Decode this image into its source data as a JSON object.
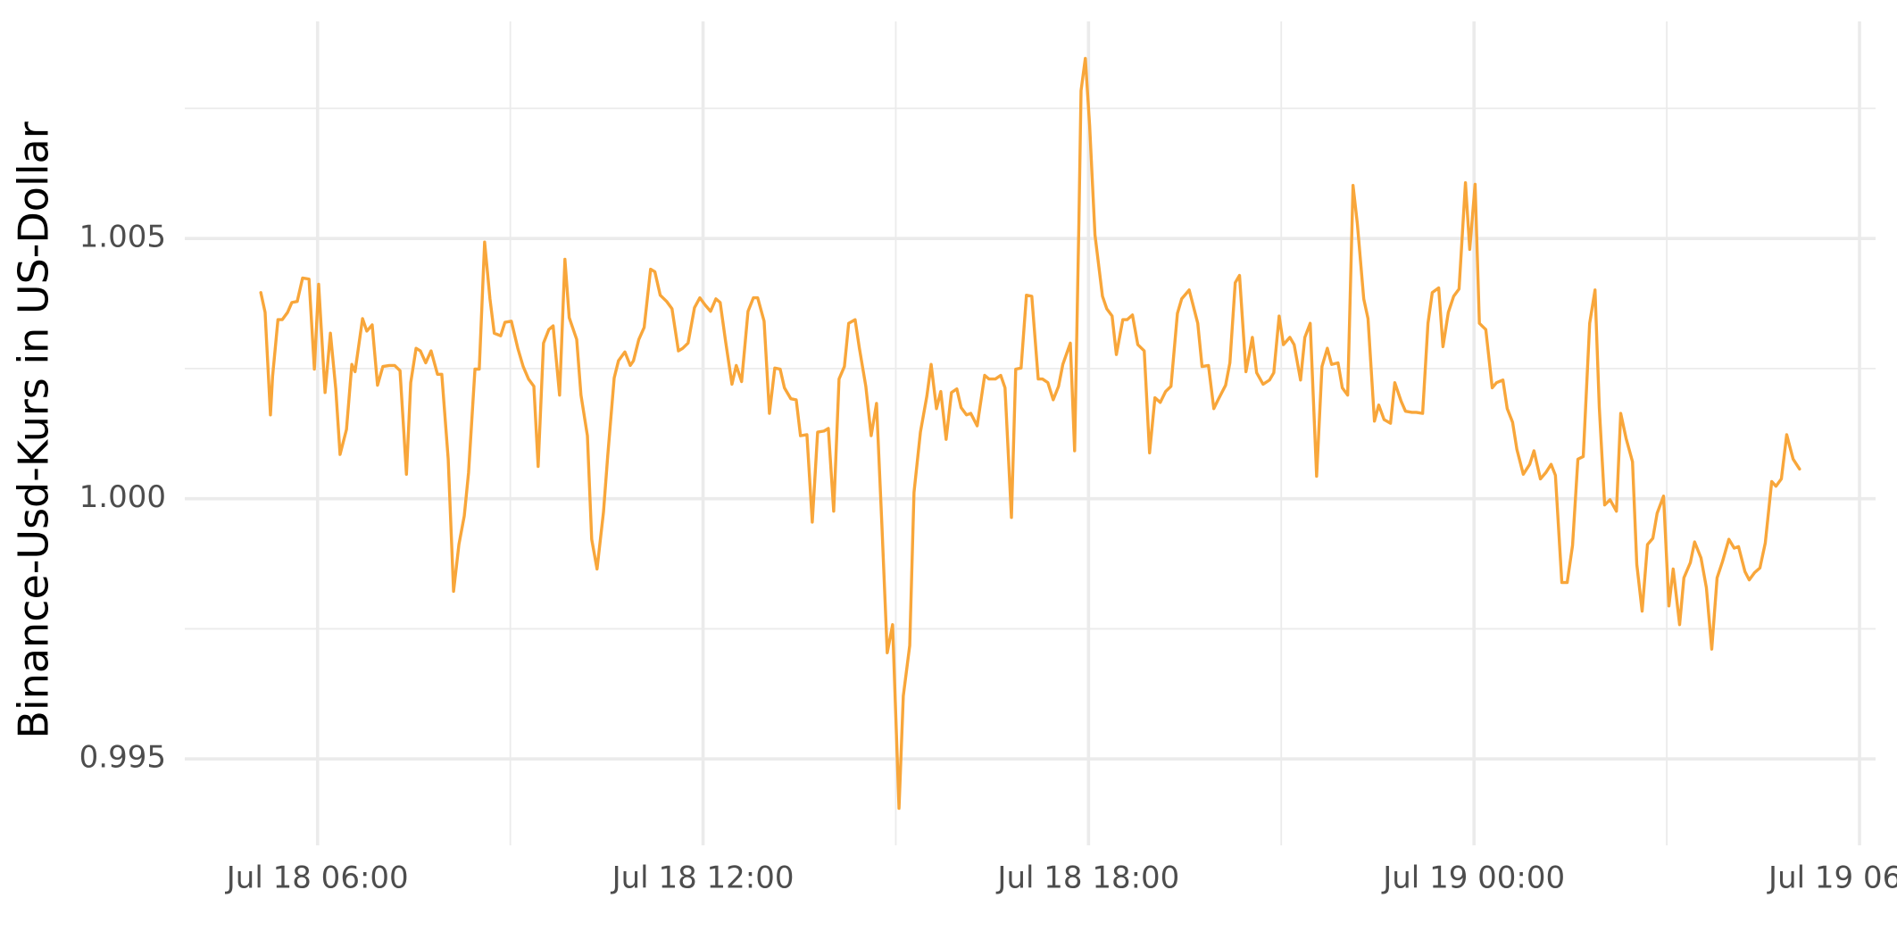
{
  "chart_data": {
    "type": "line",
    "ylabel": "Binance-Usd-Kurs in US-Dollar",
    "color": "#f8a63a",
    "grid": true,
    "xlim": [
      "Jul 18 03:56",
      "Jul 19 06:15"
    ],
    "xticks": [
      "Jul 18 06:00",
      "Jul 18 12:00",
      "Jul 18 18:00",
      "Jul 19 00:00",
      "Jul 19 06:00"
    ],
    "xminorticks": [
      "Jul 18 09:00",
      "Jul 18 15:00",
      "Jul 18 21:00",
      "Jul 19 03:00"
    ],
    "ylim": [
      0.99334,
      1.00917
    ],
    "yticks": [
      0.995,
      {
        "value": 1,
        "label": "1.000"
      },
      1.005
    ],
    "yminorticks": [
      0.9975,
      1.0025,
      1.0075
    ],
    "x": [
      "Jul 18 05:07",
      "Jul 18 05:11",
      "Jul 18 05:16",
      "Jul 18 05:18",
      "Jul 18 05:23",
      "Jul 18 05:27",
      "Jul 18 05:32",
      "Jul 18 05:36",
      "Jul 18 05:41",
      "Jul 18 05:46",
      "Jul 18 05:52",
      "Jul 18 05:57",
      "Jul 18 06:01",
      "Jul 18 06:07",
      "Jul 18 06:12",
      "Jul 18 06:17",
      "Jul 18 06:21",
      "Jul 18 06:27",
      "Jul 18 06:32",
      "Jul 18 06:35",
      "Jul 18 06:42",
      "Jul 18 06:46",
      "Jul 18 06:51",
      "Jul 18 06:56",
      "Jul 18 07:01",
      "Jul 18 07:07",
      "Jul 18 07:12",
      "Jul 18 07:17",
      "Jul 18 07:23",
      "Jul 18 07:27",
      "Jul 18 07:32",
      "Jul 18 07:36",
      "Jul 18 07:41",
      "Jul 18 07:46",
      "Jul 18 07:52",
      "Jul 18 07:56",
      "Jul 18 08:02",
      "Jul 18 08:07",
      "Jul 18 08:12",
      "Jul 18 08:17",
      "Jul 18 08:21",
      "Jul 18 08:27",
      "Jul 18 08:31",
      "Jul 18 08:36",
      "Jul 18 08:41",
      "Jul 18 08:45",
      "Jul 18 08:51",
      "Jul 18 08:55",
      "Jul 18 09:01",
      "Jul 18 09:07",
      "Jul 18 09:12",
      "Jul 18 09:17",
      "Jul 18 09:22",
      "Jul 18 09:26",
      "Jul 18 09:31",
      "Jul 18 09:36",
      "Jul 18 09:40",
      "Jul 18 09:46",
      "Jul 18 09:51",
      "Jul 18 09:55",
      "Jul 18 10:02",
      "Jul 18 10:06",
      "Jul 18 10:12",
      "Jul 18 10:16",
      "Jul 18 10:21",
      "Jul 18 10:27",
      "Jul 18 10:31",
      "Jul 18 10:37",
      "Jul 18 10:41",
      "Jul 18 10:47",
      "Jul 18 10:52",
      "Jul 18 10:55",
      "Jul 18 11:00",
      "Jul 18 11:05",
      "Jul 18 11:11",
      "Jul 18 11:15",
      "Jul 18 11:20",
      "Jul 18 11:26",
      "Jul 18 11:31",
      "Jul 18 11:37",
      "Jul 18 11:41",
      "Jul 18 11:46",
      "Jul 18 11:52",
      "Jul 18 11:57",
      "Jul 18 12:02",
      "Jul 18 12:07",
      "Jul 18 12:12",
      "Jul 18 12:16",
      "Jul 18 12:21",
      "Jul 18 12:27",
      "Jul 18 12:31",
      "Jul 18 12:36",
      "Jul 18 12:42",
      "Jul 18 12:47",
      "Jul 18 12:51",
      "Jul 18 12:57",
      "Jul 18 13:02",
      "Jul 18 13:07",
      "Jul 18 13:12",
      "Jul 18 13:16",
      "Jul 18 13:22",
      "Jul 18 13:27",
      "Jul 18 13:31",
      "Jul 18 13:37",
      "Jul 18 13:42",
      "Jul 18 13:47",
      "Jul 18 13:53",
      "Jul 18 13:57",
      "Jul 18 14:02",
      "Jul 18 14:07",
      "Jul 18 14:12",
      "Jul 18 14:16",
      "Jul 18 14:22",
      "Jul 18 14:26",
      "Jul 18 14:32",
      "Jul 18 14:37",
      "Jul 18 14:42",
      "Jul 18 14:47",
      "Jul 18 14:52",
      "Jul 18 14:57",
      "Jul 18 15:03",
      "Jul 18 15:07",
      "Jul 18 15:13",
      "Jul 18 15:17",
      "Jul 18 15:23",
      "Jul 18 15:29",
      "Jul 18 15:33",
      "Jul 18 15:38",
      "Jul 18 15:42",
      "Jul 18 15:47",
      "Jul 18 15:52",
      "Jul 18 15:57",
      "Jul 18 16:01",
      "Jul 18 16:06",
      "Jul 18 16:10",
      "Jul 18 16:16",
      "Jul 18 16:23",
      "Jul 18 16:27",
      "Jul 18 16:33",
      "Jul 18 16:38",
      "Jul 18 16:42",
      "Jul 18 16:48",
      "Jul 18 16:52",
      "Jul 18 16:57",
      "Jul 18 17:02",
      "Jul 18 17:07",
      "Jul 18 17:13",
      "Jul 18 17:17",
      "Jul 18 17:22",
      "Jul 18 17:27",
      "Jul 18 17:32",
      "Jul 18 17:36",
      "Jul 18 17:43",
      "Jul 18 17:47",
      "Jul 18 17:51",
      "Jul 18 17:53",
      "Jul 18 17:57",
      "Jul 18 18:01",
      "Jul 18 18:06",
      "Jul 18 18:13",
      "Jul 18 18:17",
      "Jul 18 18:22",
      "Jul 18 18:26",
      "Jul 18 18:32",
      "Jul 18 18:36",
      "Jul 18 18:41",
      "Jul 18 18:46",
      "Jul 18 18:52",
      "Jul 18 18:57",
      "Jul 18 19:02",
      "Jul 18 19:07",
      "Jul 18 19:12",
      "Jul 18 19:17",
      "Jul 18 19:23",
      "Jul 18 19:27",
      "Jul 18 19:34",
      "Jul 18 19:42",
      "Jul 18 19:46",
      "Jul 18 19:52",
      "Jul 18 19:57",
      "Jul 18 20:01",
      "Jul 18 20:08",
      "Jul 18 20:12",
      "Jul 18 20:17",
      "Jul 18 20:21",
      "Jul 18 20:27",
      "Jul 18 20:33",
      "Jul 18 20:37",
      "Jul 18 20:43",
      "Jul 18 20:49",
      "Jul 18 20:53",
      "Jul 18 20:58",
      "Jul 18 21:02",
      "Jul 18 21:08",
      "Jul 18 21:12",
      "Jul 18 21:18",
      "Jul 18 21:22",
      "Jul 18 21:27",
      "Jul 18 21:33",
      "Jul 18 21:38",
      "Jul 18 21:43",
      "Jul 18 21:47",
      "Jul 18 21:53",
      "Jul 18 21:57",
      "Jul 18 22:02",
      "Jul 18 22:07",
      "Jul 18 22:11",
      "Jul 18 22:17",
      "Jul 18 22:21",
      "Jul 18 22:27",
      "Jul 18 22:31",
      "Jul 18 22:36",
      "Jul 18 22:42",
      "Jul 18 22:46",
      "Jul 18 22:52",
      "Jul 18 22:56",
      "Jul 18 23:02",
      "Jul 18 23:06",
      "Jul 18 23:12",
      "Jul 18 23:17",
      "Jul 18 23:21",
      "Jul 18 23:27",
      "Jul 18 23:31",
      "Jul 18 23:36",
      "Jul 18 23:41",
      "Jul 18 23:46",
      "Jul 18 23:52",
      "Jul 18 23:56",
      "Jul 19 00:01",
      "Jul 19 00:05",
      "Jul 19 00:11",
      "Jul 19 00:17",
      "Jul 19 00:21",
      "Jul 19 00:27",
      "Jul 19 00:31",
      "Jul 19 00:36",
      "Jul 19 00:40",
      "Jul 19 00:46",
      "Jul 19 00:52",
      "Jul 19 00:56",
      "Jul 19 01:02",
      "Jul 19 01:07",
      "Jul 19 01:12",
      "Jul 19 01:16",
      "Jul 19 01:22",
      "Jul 19 01:27",
      "Jul 19 01:32",
      "Jul 19 01:37",
      "Jul 19 01:42",
      "Jul 19 01:48",
      "Jul 19 01:53",
      "Jul 19 01:57",
      "Jul 19 02:02",
      "Jul 19 02:07",
      "Jul 19 02:13",
      "Jul 19 02:17",
      "Jul 19 02:22",
      "Jul 19 02:28",
      "Jul 19 02:32",
      "Jul 19 02:37",
      "Jul 19 02:42",
      "Jul 19 02:47",
      "Jul 19 02:51",
      "Jul 19 02:57",
      "Jul 19 03:02",
      "Jul 19 03:06",
      "Jul 19 03:12",
      "Jul 19 03:16",
      "Jul 19 03:22",
      "Jul 19 03:26",
      "Jul 19 03:32",
      "Jul 19 03:37",
      "Jul 19 03:42",
      "Jul 19 03:47",
      "Jul 19 03:52",
      "Jul 19 03:58",
      "Jul 19 04:03",
      "Jul 19 04:07",
      "Jul 19 04:13",
      "Jul 19 04:17",
      "Jul 19 04:22",
      "Jul 19 04:27",
      "Jul 19 04:32",
      "Jul 19 04:38",
      "Jul 19 04:42",
      "Jul 19 04:47",
      "Jul 19 04:52",
      "Jul 19 04:58",
      "Jul 19 05:04"
    ],
    "values": [
      1.00396,
      1.00358,
      1.00161,
      1.00235,
      1.00344,
      1.00344,
      1.00358,
      1.00377,
      1.00379,
      1.00424,
      1.00422,
      1.00249,
      1.00412,
      1.00204,
      1.00318,
      1.00211,
      1.00085,
      1.00133,
      1.00258,
      1.00244,
      1.00346,
      1.00322,
      1.00334,
      1.00218,
      1.00254,
      1.00256,
      1.00256,
      1.00246,
      1.00047,
      1.00223,
      1.00289,
      1.00284,
      1.00261,
      1.00284,
      1.00239,
      1.00239,
      1.00076,
      0.99822,
      0.99912,
      0.99967,
      1.0005,
      1.00249,
      1.00249,
      1.00493,
      1.00384,
      1.00318,
      1.00313,
      1.00339,
      1.00341,
      1.00289,
      1.00254,
      1.0023,
      1.00216,
      1.00062,
      1.00299,
      1.00325,
      1.00332,
      1.00199,
      1.0046,
      1.00348,
      1.00306,
      1.00199,
      1.00121,
      0.99922,
      0.99865,
      0.99974,
      1.00083,
      1.00232,
      1.00265,
      1.00282,
      1.00256,
      1.00265,
      1.00306,
      1.00329,
      1.00441,
      1.00436,
      1.00391,
      1.00379,
      1.00365,
      1.00284,
      1.00289,
      1.00299,
      1.00367,
      1.00386,
      1.00372,
      1.0036,
      1.00384,
      1.00377,
      1.00303,
      1.0022,
      1.00256,
      1.00225,
      1.0036,
      1.00386,
      1.00386,
      1.00341,
      1.00164,
      1.00251,
      1.00249,
      1.00213,
      1.00192,
      1.0019,
      1.00121,
      1.00123,
      0.99955,
      1.00128,
      1.0013,
      1.00135,
      0.99976,
      1.0023,
      1.00254,
      1.00337,
      1.00344,
      1.00289,
      1.00216,
      1.00121,
      1.00183,
      0.9995,
      0.99704,
      0.99758,
      0.99405,
      0.99621,
      0.99718,
      1.00012,
      1.00128,
      1.00197,
      1.00258,
      1.00173,
      1.00206,
      1.00114,
      1.00204,
      1.00211,
      1.00175,
      1.00161,
      1.00164,
      1.0014,
      1.00237,
      1.0023,
      1.0023,
      1.00237,
      1.00213,
      0.99964,
      1.00249,
      1.00251,
      1.00391,
      1.00389,
      1.0023,
      1.0023,
      1.00223,
      1.0019,
      1.00216,
      1.00258,
      1.00299,
      1.00092,
      1.00531,
      1.00784,
      1.00846,
      1.00718,
      1.00507,
      1.00389,
      1.00365,
      1.00351,
      1.00277,
      1.00344,
      1.00344,
      1.00353,
      1.00296,
      1.00284,
      1.00088,
      1.00194,
      1.00185,
      1.00206,
      1.00216,
      1.00356,
      1.00384,
      1.00401,
      1.00337,
      1.00254,
      1.00256,
      1.00173,
      1.0019,
      1.00218,
      1.00261,
      1.00415,
      1.00429,
      1.00244,
      1.0031,
      1.00242,
      1.0022,
      1.00228,
      1.00242,
      1.00351,
      1.00296,
      1.0031,
      1.00296,
      1.00228,
      1.0031,
      1.00337,
      1.00043,
      1.00254,
      1.00289,
      1.00258,
      1.00261,
      1.00213,
      1.00199,
      1.00602,
      1.00529,
      1.00384,
      1.00346,
      1.00149,
      1.0018,
      1.00152,
      1.00145,
      1.00223,
      1.00187,
      1.00168,
      1.00166,
      1.00166,
      1.00164,
      1.00337,
      1.00396,
      1.00405,
      1.00292,
      1.00358,
      1.00389,
      1.00403,
      1.00607,
      1.00479,
      1.00604,
      1.00337,
      1.00325,
      1.00213,
      1.00223,
      1.00228,
      1.00173,
      1.00147,
      1.00095,
      1.00047,
      1.00066,
      1.00092,
      1.00038,
      1.0005,
      1.00066,
      1.00045,
      0.99839,
      0.99839,
      0.9991,
      1.00076,
      1.00081,
      1.00337,
      1.00401,
      1.00175,
      0.99988,
      0.99998,
      0.99976,
      1.00164,
      1.00116,
      1.00071,
      0.99874,
      0.99784,
      0.99912,
      0.99924,
      0.99972,
      1.00005,
      0.99794,
      0.99865,
      0.99758,
      0.99848,
      0.99877,
      0.99917,
      0.99886,
      0.99829,
      0.99711,
      0.99848,
      0.99879,
      0.99922,
      0.99905,
      0.99908,
      0.9986,
      0.99844,
      0.99858,
      0.99867,
      0.99915,
      1.00033,
      1.00024,
      1.00038,
      1.00123,
      1.00076,
      1.00057
    ]
  }
}
